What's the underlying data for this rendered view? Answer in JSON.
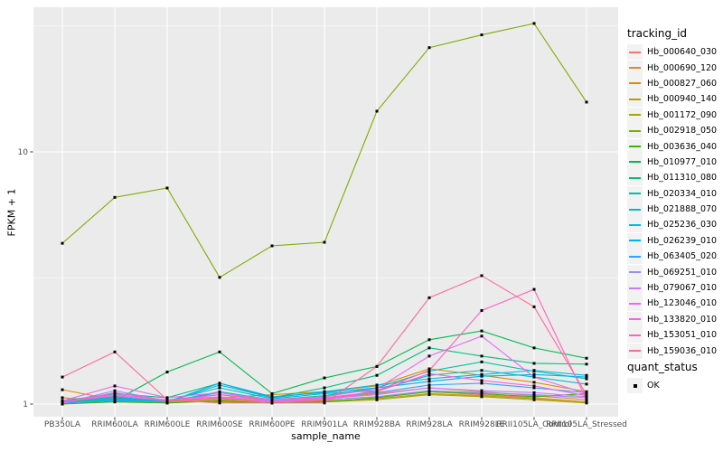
{
  "chart_data": {
    "type": "line",
    "title": "",
    "xlabel": "sample_name",
    "ylabel": "FPKM + 1",
    "y_scale": "log10",
    "ylim": [
      0.89,
      37.5
    ],
    "y_ticks": [
      {
        "value": 1,
        "label": "1"
      },
      {
        "value": 10,
        "label": "10"
      }
    ],
    "y_minor_ticks": [
      3.1623,
      31.623
    ],
    "grid": "white major+minor horizontal, white vertical at each category, grey panel",
    "legend_position": "right",
    "point_marker": "small black square at every data point",
    "categories": [
      "PB350LA",
      "RRIM600LA",
      "RRIM600LE",
      "RRIM600SE",
      "RRIM600PE",
      "RRIM901LA",
      "RRIM928BA",
      "RRIM928LA",
      "RRIM928LE",
      "RRII105LA_Control",
      "RRII105LA_Stressed"
    ],
    "series": [
      {
        "name": "Hb_000640_030",
        "color": "#F8766D",
        "values": [
          1.03,
          1.06,
          1.02,
          1.05,
          1.02,
          1.04,
          1.07,
          1.12,
          1.09,
          1.06,
          1.02
        ]
      },
      {
        "name": "Hb_000690_120",
        "color": "#EA8331",
        "values": [
          1.06,
          1.02,
          1.04,
          1.09,
          1.03,
          1.05,
          1.1,
          1.16,
          1.12,
          1.08,
          1.04
        ]
      },
      {
        "name": "Hb_000827_060",
        "color": "#D89000",
        "values": [
          1.14,
          1.04,
          1.02,
          1.06,
          1.09,
          1.12,
          1.18,
          1.38,
          1.3,
          1.22,
          1.12
        ]
      },
      {
        "name": "Hb_000940_140",
        "color": "#C09B00",
        "values": [
          1.01,
          1.03,
          1.01,
          1.04,
          1.02,
          1.03,
          1.05,
          1.1,
          1.08,
          1.05,
          1.02
        ]
      },
      {
        "name": "Hb_001172_090",
        "color": "#A3A500",
        "values": [
          1.02,
          1.05,
          1.03,
          1.02,
          1.01,
          1.02,
          1.04,
          1.09,
          1.07,
          1.04,
          1.01
        ]
      },
      {
        "name": "Hb_002918_050",
        "color": "#7CAE00",
        "values": [
          4.34,
          6.6,
          7.19,
          3.18,
          4.24,
          4.38,
          14.5,
          25.9,
          29.1,
          32.3,
          15.75
        ]
      },
      {
        "name": "Hb_003636_040",
        "color": "#39B600",
        "values": [
          1.0,
          1.02,
          1.01,
          1.03,
          1.01,
          1.02,
          1.06,
          1.12,
          1.1,
          1.07,
          1.1
        ]
      },
      {
        "name": "Hb_010977_010",
        "color": "#00BB4E",
        "values": [
          1.01,
          1.03,
          1.34,
          1.61,
          1.1,
          1.27,
          1.41,
          1.8,
          1.95,
          1.67,
          1.52
        ]
      },
      {
        "name": "Hb_011310_080",
        "color": "#00BF7D",
        "values": [
          1.03,
          1.1,
          1.06,
          1.21,
          1.06,
          1.16,
          1.3,
          1.67,
          1.55,
          1.45,
          1.44
        ]
      },
      {
        "name": "Hb_020334_010",
        "color": "#00C1A3",
        "values": [
          1.01,
          1.05,
          1.02,
          1.12,
          1.04,
          1.08,
          1.16,
          1.35,
          1.47,
          1.35,
          1.26
        ]
      },
      {
        "name": "Hb_021888_070",
        "color": "#00BFC4",
        "values": [
          1.02,
          1.06,
          1.03,
          1.16,
          1.05,
          1.1,
          1.13,
          1.3,
          1.36,
          1.28,
          1.2
        ]
      },
      {
        "name": "Hb_025236_030",
        "color": "#00BAE0",
        "values": [
          1.01,
          1.04,
          1.02,
          1.19,
          1.06,
          1.12,
          1.19,
          1.26,
          1.31,
          1.36,
          1.3
        ]
      },
      {
        "name": "Hb_026239_010",
        "color": "#00B0F6",
        "values": [
          1.03,
          1.07,
          1.02,
          1.21,
          1.07,
          1.11,
          1.16,
          1.23,
          1.29,
          1.31,
          1.28
        ]
      },
      {
        "name": "Hb_063405_020",
        "color": "#35A2FF",
        "values": [
          1.01,
          1.03,
          1.02,
          1.11,
          1.03,
          1.06,
          1.11,
          1.19,
          1.21,
          1.16,
          1.11
        ]
      },
      {
        "name": "Hb_069251_010",
        "color": "#9590FF",
        "values": [
          1.01,
          1.13,
          1.03,
          1.06,
          1.02,
          1.04,
          1.07,
          1.13,
          1.11,
          1.09,
          1.06
        ]
      },
      {
        "name": "Hb_079067_010",
        "color": "#C77CFF",
        "values": [
          1.02,
          1.09,
          1.04,
          1.07,
          1.03,
          1.05,
          1.09,
          1.16,
          1.13,
          1.11,
          1.07
        ]
      },
      {
        "name": "Hb_123046_010",
        "color": "#E76BF3",
        "values": [
          1.03,
          1.18,
          1.06,
          1.11,
          1.04,
          1.07,
          1.15,
          1.55,
          1.86,
          1.28,
          1.1
        ]
      },
      {
        "name": "Hb_133820_010",
        "color": "#FA62DB",
        "values": [
          1.02,
          1.08,
          1.03,
          1.09,
          1.04,
          1.06,
          1.12,
          1.32,
          1.24,
          1.18,
          1.08
        ]
      },
      {
        "name": "Hb_153051_010",
        "color": "#FF62BC",
        "values": [
          1.01,
          1.11,
          1.03,
          1.06,
          1.02,
          1.04,
          1.13,
          1.36,
          2.35,
          2.85,
          1.04
        ]
      },
      {
        "name": "Hb_159036_010",
        "color": "#FF6A98",
        "values": [
          1.28,
          1.61,
          1.04,
          1.01,
          1.01,
          1.01,
          1.41,
          2.64,
          3.23,
          2.43,
          1.09
        ]
      }
    ]
  },
  "legend_tracking": {
    "title": "tracking_id"
  },
  "legend_quant": {
    "title": "quant_status",
    "items": [
      {
        "label": "OK"
      }
    ]
  },
  "colors": {
    "panel_bg": "#EBEBEB",
    "grid": "#FFFFFF",
    "tick_text": "#4D4D4D",
    "axis_title_text": "#000000",
    "legend_key_bg": "#F2F2F2",
    "point": "#000000",
    "tick_mark": "#333333"
  }
}
